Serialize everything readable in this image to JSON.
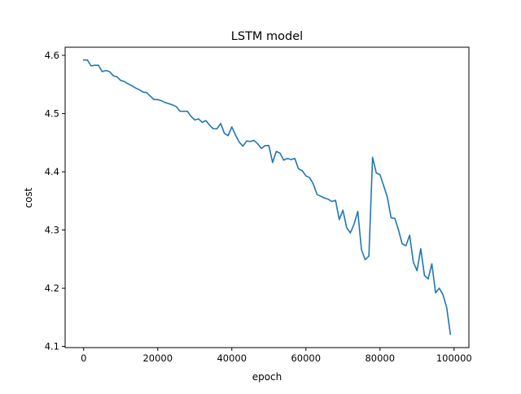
{
  "chart_data": {
    "type": "line",
    "title": "LSTM model",
    "xlabel": "epoch",
    "ylabel": "cost",
    "xlim": [
      -5000,
      104000
    ],
    "ylim": [
      4.098,
      4.614
    ],
    "grid": false,
    "legend": "none",
    "x_ticks": [
      {
        "value": 0,
        "label": "0"
      },
      {
        "value": 20000,
        "label": "20000"
      },
      {
        "value": 40000,
        "label": "40000"
      },
      {
        "value": 60000,
        "label": "60000"
      },
      {
        "value": 80000,
        "label": "80000"
      },
      {
        "value": 100000,
        "label": "100000"
      }
    ],
    "y_ticks": [
      {
        "value": 4.1,
        "label": "4.1"
      },
      {
        "value": 4.2,
        "label": "4.2"
      },
      {
        "value": 4.3,
        "label": "4.3"
      },
      {
        "value": 4.4,
        "label": "4.4"
      },
      {
        "value": 4.5,
        "label": "4.5"
      },
      {
        "value": 4.6,
        "label": "4.6"
      }
    ],
    "series": [
      {
        "color": "#1f77b4",
        "x": [
          0,
          1000,
          2000,
          3000,
          4000,
          5000,
          6000,
          7000,
          8000,
          9000,
          10000,
          11000,
          12000,
          13000,
          14000,
          15000,
          16000,
          17000,
          18000,
          19000,
          20000,
          21000,
          22000,
          23000,
          24000,
          25000,
          26000,
          27000,
          28000,
          29000,
          30000,
          31000,
          32000,
          33000,
          34000,
          35000,
          36000,
          37000,
          38000,
          39000,
          40000,
          41000,
          42000,
          43000,
          44000,
          45000,
          46000,
          47000,
          48000,
          49000,
          50000,
          51000,
          52000,
          53000,
          54000,
          55000,
          56000,
          57000,
          58000,
          59000,
          60000,
          61000,
          62000,
          63000,
          64000,
          65000,
          66000,
          67000,
          68000,
          69000,
          70000,
          71000,
          72000,
          73000,
          74000,
          75000,
          76000,
          77000,
          78000,
          79000,
          80000,
          81000,
          82000,
          83000,
          84000,
          85000,
          86000,
          87000,
          88000,
          89000,
          90000,
          91000,
          92000,
          93000,
          94000,
          95000,
          96000,
          97000,
          98000,
          99000
        ],
        "y": [
          4.592,
          4.592,
          4.582,
          4.583,
          4.583,
          4.572,
          4.574,
          4.572,
          4.565,
          4.563,
          4.557,
          4.555,
          4.551,
          4.548,
          4.544,
          4.541,
          4.537,
          4.536,
          4.53,
          4.524,
          4.524,
          4.522,
          4.519,
          4.517,
          4.515,
          4.512,
          4.504,
          4.504,
          4.504,
          4.495,
          4.489,
          4.491,
          4.485,
          4.488,
          4.48,
          4.474,
          4.474,
          4.483,
          4.466,
          4.462,
          4.477,
          4.463,
          4.451,
          4.444,
          4.453,
          4.452,
          4.454,
          4.448,
          4.44,
          4.445,
          4.445,
          4.416,
          4.435,
          4.432,
          4.42,
          4.423,
          4.421,
          4.423,
          4.405,
          4.402,
          4.393,
          4.39,
          4.379,
          4.361,
          4.358,
          4.355,
          4.353,
          4.349,
          4.351,
          4.318,
          4.334,
          4.304,
          4.295,
          4.31,
          4.332,
          4.266,
          4.249,
          4.255,
          4.425,
          4.398,
          4.395,
          4.376,
          4.356,
          4.321,
          4.32,
          4.3,
          4.276,
          4.273,
          4.291,
          4.245,
          4.23,
          4.268,
          4.222,
          4.216,
          4.242,
          4.192,
          4.2,
          4.189,
          4.167,
          4.121
        ]
      }
    ]
  }
}
